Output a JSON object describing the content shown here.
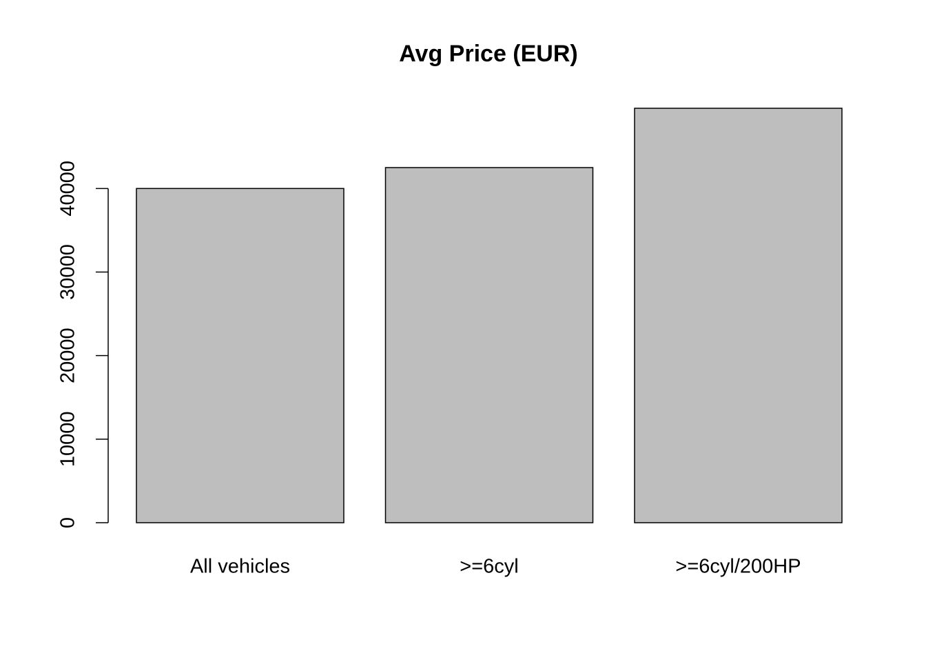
{
  "chart_data": {
    "type": "bar",
    "title": "Avg Price (EUR)",
    "categories": [
      "All vehicles",
      ">=6cyl",
      ">=6cyl/200HP"
    ],
    "values": [
      40000,
      42500,
      49600
    ],
    "color": "#bebebe",
    "ylim": [
      0,
      49600
    ],
    "yticks": [
      0,
      10000,
      20000,
      30000,
      40000
    ],
    "grid": false
  }
}
